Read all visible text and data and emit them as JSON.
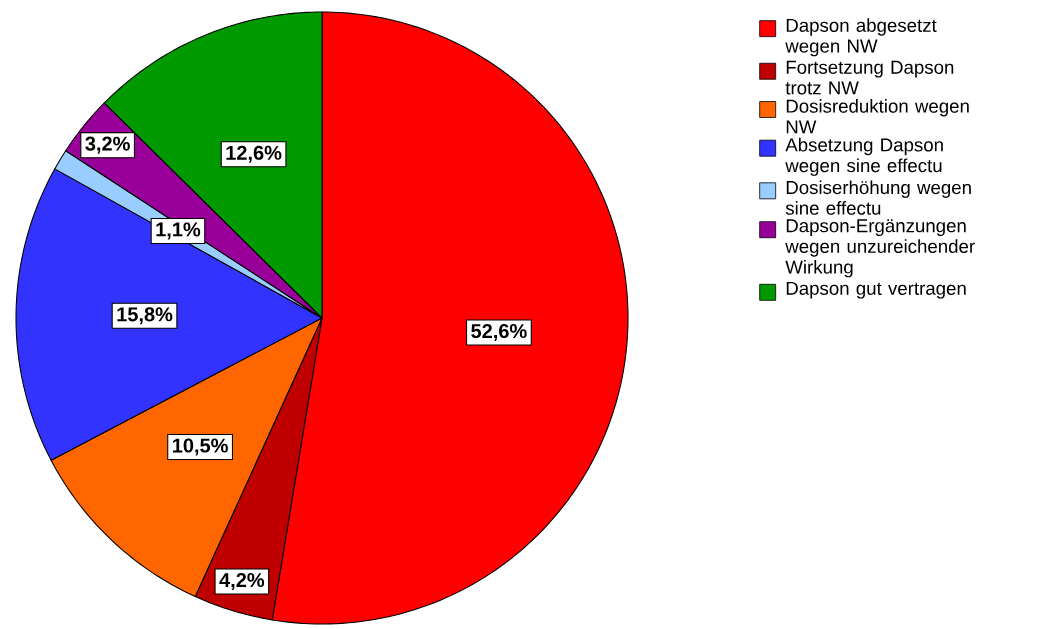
{
  "chart_data": {
    "type": "pie",
    "categories": [
      "Dapson abgesetzt wegen NW",
      "Fortsetzung Dapson trotz NW",
      "Dosisreduktion wegen NW",
      "Absetzung Dapson wegen sine effectu",
      "Dosiserhöhung wegen sine effectu",
      "Dapson-Ergänzungen wegen unzureichender Wirkung",
      "Dapson gut vertragen"
    ],
    "values": [
      52.6,
      4.2,
      10.5,
      15.8,
      1.1,
      3.2,
      12.6
    ],
    "value_labels": [
      "52,6%",
      "4,2%",
      "10,5%",
      "15,8%",
      "1,1%",
      "3,2%",
      "12,6%"
    ],
    "colors": [
      "#ff0000",
      "#c00000",
      "#ff6600",
      "#3333ff",
      "#99ccff",
      "#990099",
      "#009900"
    ],
    "legend": "right"
  }
}
